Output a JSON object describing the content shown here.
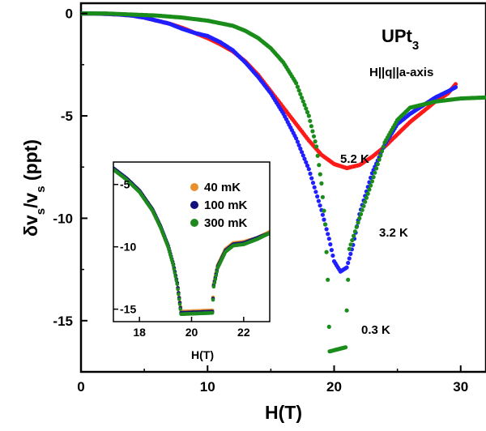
{
  "chart_data": [
    {
      "type": "scatter",
      "title": "",
      "xlabel": "H(T)",
      "ylabel": "δv_s/v_s (ppt)",
      "xlim": [
        0,
        32
      ],
      "ylim": [
        -17.5,
        0.5
      ],
      "xticks": [
        0,
        10,
        20,
        30
      ],
      "yticks": [
        0,
        -5,
        -10,
        -15
      ],
      "annotations": {
        "sample": "UPt",
        "sample_sub": "3",
        "geometry": "H||q||a-axis"
      },
      "legend": "none",
      "series": [
        {
          "name": "5.2 K",
          "color": "#ff1a1a",
          "points": [
            [
              0,
              0
            ],
            [
              1,
              0
            ],
            [
              2,
              -0.02
            ],
            [
              3,
              -0.05
            ],
            [
              4,
              -0.1
            ],
            [
              5,
              -0.2
            ],
            [
              6,
              -0.35
            ],
            [
              7,
              -0.5
            ],
            [
              8,
              -0.7
            ],
            [
              9,
              -0.95
            ],
            [
              10,
              -1.2
            ],
            [
              11,
              -1.5
            ],
            [
              12,
              -1.85
            ],
            [
              13,
              -2.35
            ],
            [
              14,
              -3.0
            ],
            [
              15,
              -3.8
            ],
            [
              16,
              -4.6
            ],
            [
              17,
              -5.4
            ],
            [
              18,
              -6.2
            ],
            [
              19,
              -6.9
            ],
            [
              20,
              -7.35
            ],
            [
              21,
              -7.55
            ],
            [
              22,
              -7.4
            ],
            [
              23,
              -7.0
            ],
            [
              24,
              -6.5
            ],
            [
              25,
              -5.9
            ],
            [
              26,
              -5.3
            ],
            [
              27,
              -4.8
            ],
            [
              28,
              -4.3
            ],
            [
              29,
              -3.9
            ],
            [
              29.6,
              -3.45
            ]
          ]
        },
        {
          "name": "3.2 K",
          "color": "#1f1fff",
          "points": [
            [
              0,
              0
            ],
            [
              1,
              0
            ],
            [
              2,
              -0.02
            ],
            [
              3,
              -0.05
            ],
            [
              4,
              -0.1
            ],
            [
              5,
              -0.2
            ],
            [
              6,
              -0.35
            ],
            [
              7,
              -0.5
            ],
            [
              8,
              -0.75
            ],
            [
              9,
              -0.95
            ],
            [
              10,
              -1.1
            ],
            [
              11,
              -1.4
            ],
            [
              12,
              -1.8
            ],
            [
              13,
              -2.4
            ],
            [
              14,
              -3.1
            ],
            [
              15,
              -3.9
            ],
            [
              16,
              -4.9
            ],
            [
              17,
              -6.1
            ],
            [
              18,
              -7.6
            ],
            [
              19,
              -9.6
            ],
            [
              19.6,
              -11.0
            ],
            [
              20,
              -12.1
            ],
            [
              20.5,
              -12.6
            ],
            [
              21,
              -12.4
            ],
            [
              21.5,
              -11.3
            ],
            [
              22,
              -9.8
            ],
            [
              23,
              -7.8
            ],
            [
              24,
              -6.4
            ],
            [
              25,
              -5.4
            ],
            [
              26,
              -4.9
            ],
            [
              27,
              -4.5
            ],
            [
              28,
              -4.1
            ],
            [
              29,
              -3.8
            ],
            [
              29.6,
              -3.6
            ]
          ]
        },
        {
          "name": "0.3 K",
          "color": "#1a8c1a",
          "points": [
            [
              0,
              0
            ],
            [
              2,
              0
            ],
            [
              4,
              -0.05
            ],
            [
              6,
              -0.1
            ],
            [
              8,
              -0.2
            ],
            [
              10,
              -0.35
            ],
            [
              12,
              -0.6
            ],
            [
              13,
              -0.85
            ],
            [
              14,
              -1.2
            ],
            [
              15,
              -1.7
            ],
            [
              16,
              -2.4
            ],
            [
              17,
              -3.4
            ],
            [
              18,
              -5.0
            ],
            [
              18.6,
              -6.5
            ],
            [
              19,
              -8.3
            ],
            [
              19.3,
              -10.3
            ],
            [
              19.5,
              -13.0
            ],
            [
              19.6,
              -15.3
            ],
            [
              19.65,
              -16.5
            ],
            [
              20.9,
              -16.3
            ],
            [
              21,
              -14.5
            ],
            [
              21.2,
              -11.5
            ],
            [
              22,
              -10.0
            ],
            [
              23,
              -8.2
            ],
            [
              24,
              -6.3
            ],
            [
              25,
              -5.2
            ],
            [
              26,
              -4.6
            ],
            [
              28,
              -4.3
            ],
            [
              30,
              -4.15
            ],
            [
              32,
              -4.1
            ]
          ]
        }
      ]
    },
    {
      "type": "scatter",
      "title": "",
      "xlabel": "H(T)",
      "ylabel": "",
      "xlim": [
        17,
        23
      ],
      "ylim": [
        -16,
        -3.2
      ],
      "xticks": [
        18,
        20,
        22
      ],
      "yticks": [
        -5,
        -10,
        -15
      ],
      "legend": "top-right",
      "series": [
        {
          "name": "40 mK",
          "color": "#e8902c",
          "points": [
            [
              17,
              -3.8
            ],
            [
              17.5,
              -4.5
            ],
            [
              18,
              -5.5
            ],
            [
              18.5,
              -7.0
            ],
            [
              18.8,
              -8.4
            ],
            [
              19.1,
              -10.0
            ],
            [
              19.3,
              -11.4
            ],
            [
              19.45,
              -12.9
            ],
            [
              19.6,
              -15.2
            ],
            [
              20.8,
              -15.1
            ],
            [
              20.85,
              -13.0
            ],
            [
              21,
              -11.5
            ],
            [
              21.3,
              -10.2
            ],
            [
              21.6,
              -9.7
            ],
            [
              22,
              -9.6
            ],
            [
              22.5,
              -9.3
            ],
            [
              23,
              -8.8
            ]
          ]
        },
        {
          "name": "100 mK",
          "color": "#12127a",
          "points": [
            [
              17,
              -3.7
            ],
            [
              17.5,
              -4.5
            ],
            [
              18,
              -5.5
            ],
            [
              18.5,
              -7.0
            ],
            [
              18.8,
              -8.3
            ],
            [
              19.1,
              -9.9
            ],
            [
              19.3,
              -11.4
            ],
            [
              19.45,
              -12.9
            ],
            [
              19.6,
              -15.3
            ],
            [
              20.8,
              -15.2
            ],
            [
              20.85,
              -13.1
            ],
            [
              21,
              -11.6
            ],
            [
              21.3,
              -10.3
            ],
            [
              21.6,
              -9.8
            ],
            [
              22,
              -9.7
            ],
            [
              22.5,
              -9.3
            ],
            [
              23,
              -8.9
            ]
          ]
        },
        {
          "name": "300 mK",
          "color": "#1e8a1e",
          "points": [
            [
              17,
              -3.8
            ],
            [
              17.5,
              -4.6
            ],
            [
              18,
              -5.6
            ],
            [
              18.5,
              -7.1
            ],
            [
              18.8,
              -8.4
            ],
            [
              19.1,
              -10.0
            ],
            [
              19.3,
              -11.5
            ],
            [
              19.45,
              -13.0
            ],
            [
              19.6,
              -15.4
            ],
            [
              20.8,
              -15.3
            ],
            [
              20.85,
              -13.2
            ],
            [
              21,
              -11.7
            ],
            [
              21.3,
              -10.4
            ],
            [
              21.6,
              -9.9
            ],
            [
              22,
              -9.8
            ],
            [
              22.5,
              -9.4
            ],
            [
              23,
              -8.9
            ]
          ]
        }
      ]
    }
  ]
}
